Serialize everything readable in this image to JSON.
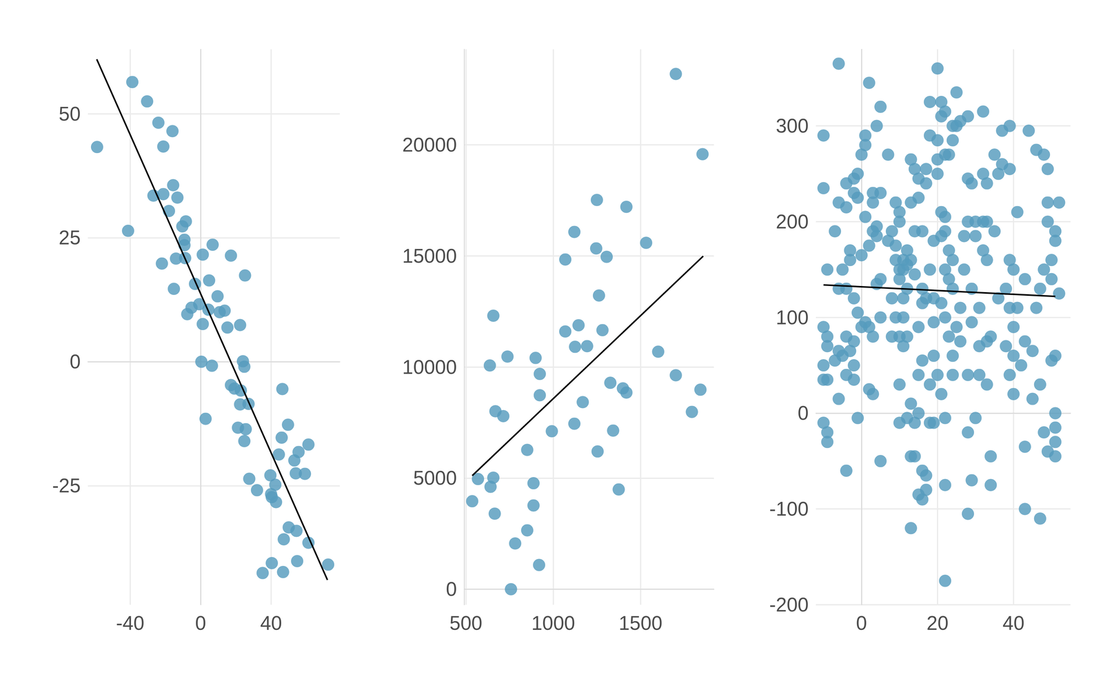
{
  "chart_data": [
    {
      "type": "scatter",
      "grid": true,
      "marker": "circle",
      "xlim": [
        -64,
        79
      ],
      "ylim": [
        -49,
        63
      ],
      "xticks": [
        -40,
        0,
        40
      ],
      "yticks": [
        -25,
        0,
        25,
        50
      ],
      "series": [
        {
          "type": "scatter",
          "color": "#569bbd",
          "x": [
            -58.8,
            -41.2,
            -38.8,
            -30.4,
            -24,
            -16,
            -21.2,
            -15.6,
            -26.8,
            -21.2,
            -13.2,
            -18,
            -8.4,
            -10.4,
            -9.2,
            -9.2,
            -8.8,
            -14,
            -22,
            -15.2,
            -3.2,
            1.2,
            6.8,
            4.8,
            9.6,
            -7.6,
            -5.2,
            -0.8,
            4.4,
            10.8,
            13.6,
            1.2,
            15.2,
            17.2,
            25.2,
            22.4,
            0.4,
            6.4,
            2.8,
            24,
            24.8,
            17.2,
            19.2,
            22.8,
            22.4,
            27.2,
            21.2,
            25.6,
            24.8,
            46.4,
            49.6,
            46,
            61.2,
            55.6,
            44.4,
            53.2,
            59.2,
            54,
            39.6,
            42.4,
            27.6,
            32,
            40,
            40.4,
            42.8,
            50,
            54.4,
            47.2,
            61.2,
            40.4,
            54.8,
            72.4,
            35.2,
            46.8
          ],
          "values": [
            43.3,
            26.4,
            56.4,
            52.5,
            48.2,
            46.5,
            43.4,
            35.6,
            33.5,
            33.8,
            33.1,
            30.4,
            28.3,
            27.3,
            24.6,
            23.5,
            20.9,
            20.8,
            19.8,
            14.7,
            15.7,
            21.6,
            23.6,
            16.4,
            13.2,
            9.6,
            10.9,
            11.6,
            10.5,
            10,
            10.3,
            7.6,
            6.9,
            21.4,
            17.4,
            7.4,
            0,
            -0.8,
            -11.5,
            0.1,
            -1,
            -4.7,
            -5.4,
            -5.8,
            -8.6,
            -8.5,
            -13.3,
            -13.6,
            -16,
            -5.5,
            -12.7,
            -15.3,
            -16.7,
            -18.2,
            -18.7,
            -19.9,
            -22.6,
            -22.5,
            -22.9,
            -24.8,
            -23.6,
            -25.9,
            -26.7,
            -27.3,
            -28.3,
            -33.4,
            -34.1,
            -35.8,
            -36.5,
            -40.6,
            -40.2,
            -40.9,
            -42.6,
            -42.4
          ]
        },
        {
          "type": "line",
          "color": "#000000",
          "x": [
            -59,
            72
          ],
          "values": [
            61,
            -44
          ]
        }
      ]
    },
    {
      "type": "scatter",
      "grid": true,
      "marker": "circle",
      "xlim": [
        490,
        1920
      ],
      "ylim": [
        -700,
        24300
      ],
      "xticks": [
        500,
        1000,
        1500
      ],
      "yticks": [
        0,
        5000,
        10000,
        15000,
        20000
      ],
      "series": [
        {
          "type": "scatter",
          "color": "#569bbd",
          "x": [
            536,
            569,
            641,
            657,
            665,
            657,
            637,
            669,
            714,
            738,
            782,
            758,
            851,
            851,
            887,
            887,
            899,
            923,
            923,
            919,
            992,
            1069,
            1069,
            1121,
            1125,
            1145,
            1121,
            1169,
            1194,
            1250,
            1246,
            1262,
            1306,
            1282,
            1254,
            1327,
            1343,
            1375,
            1399,
            1419,
            1419,
            1532,
            1601,
            1702,
            1702,
            1794,
            1843,
            1855
          ],
          "values": [
            3960,
            4960,
            4610,
            5020,
            3400,
            12310,
            10070,
            8010,
            7790,
            10470,
            2060,
            0,
            2650,
            6270,
            3770,
            4770,
            10410,
            9690,
            8730,
            1090,
            7110,
            14840,
            11600,
            16080,
            10910,
            11880,
            7450,
            8420,
            10940,
            17520,
            15340,
            13220,
            14960,
            11660,
            6200,
            9290,
            7140,
            4490,
            9040,
            8850,
            17210,
            15590,
            10690,
            9630,
            23190,
            7980,
            8980,
            19580
          ]
        },
        {
          "type": "line",
          "color": "#000000",
          "x": [
            536,
            1859
          ],
          "values": [
            5110,
            14990
          ]
        }
      ]
    },
    {
      "type": "scatter",
      "grid": true,
      "marker": "circle",
      "xlim": [
        -12,
        55
      ],
      "ylim": [
        -200,
        380
      ],
      "xticks": [
        0,
        20,
        40
      ],
      "yticks": [
        -200,
        -100,
        0,
        100,
        200,
        300
      ],
      "series": [
        {
          "type": "scatter",
          "color": "#569bbd",
          "x": [
            -10,
            -10,
            -9,
            -10,
            -9,
            -9,
            -10,
            -10,
            -9,
            -10,
            -9,
            -9,
            -6,
            -6,
            -7,
            -4,
            -4,
            -3,
            -2,
            -2,
            -1,
            -1,
            -3,
            -5,
            -4,
            -6,
            -5,
            -7,
            -3,
            -4,
            -2,
            -4,
            -2,
            -6,
            -4,
            -1,
            -2,
            -1,
            -2,
            -6,
            0,
            1,
            1,
            2,
            3,
            3,
            3,
            4,
            4,
            2,
            1,
            0,
            1,
            0,
            2,
            3,
            2,
            3,
            5,
            5,
            4,
            5,
            5,
            4,
            5,
            7,
            8,
            7,
            9,
            9,
            10,
            10,
            10,
            10,
            9,
            8,
            10,
            8,
            9,
            10,
            10,
            11,
            11,
            12,
            12,
            13,
            12,
            13,
            13,
            14,
            15,
            14,
            15,
            16,
            15,
            15,
            16,
            12,
            13,
            14,
            13,
            15,
            14,
            13,
            15,
            16,
            17,
            17,
            18,
            18,
            16,
            17,
            18,
            11,
            11,
            12,
            14,
            11,
            16,
            18,
            17,
            16,
            17,
            18,
            19,
            19,
            19,
            19,
            19,
            20,
            20,
            20,
            21,
            21,
            20,
            22,
            22,
            23,
            24,
            24,
            25,
            25,
            26,
            28,
            21,
            22,
            21,
            22,
            23,
            24,
            22,
            23,
            24,
            21,
            22,
            23,
            24,
            20,
            21,
            22,
            22,
            22,
            24,
            25,
            26,
            26,
            27,
            27,
            28,
            28,
            29,
            30,
            30,
            29,
            29,
            28,
            28,
            28,
            29,
            30,
            31,
            31,
            31,
            32,
            32,
            32,
            32,
            33,
            33,
            33,
            33,
            33,
            34,
            34,
            34,
            35,
            35,
            36,
            36,
            37,
            37,
            38,
            38,
            39,
            39,
            39,
            39,
            40,
            40,
            40,
            41,
            41,
            42,
            43,
            43,
            43,
            43,
            44,
            45,
            45,
            46,
            46,
            47,
            47,
            47,
            48,
            48,
            49,
            49,
            49,
            50,
            50,
            50,
            49,
            48,
            51,
            51,
            51,
            51,
            51,
            51,
            52,
            52,
            51,
            40,
            39
          ],
          "values": [
            290,
            235,
            150,
            90,
            80,
            70,
            50,
            35,
            35,
            -10,
            -20,
            -30,
            365,
            220,
            190,
            240,
            215,
            170,
            245,
            230,
            250,
            225,
            160,
            150,
            130,
            65,
            60,
            55,
            65,
            80,
            75,
            40,
            35,
            15,
            -60,
            -5,
            50,
            105,
            120,
            130,
            270,
            290,
            280,
            345,
            230,
            220,
            190,
            195,
            185,
            175,
            205,
            165,
            95,
            90,
            90,
            80,
            25,
            20,
            -50,
            100,
            135,
            140,
            230,
            300,
            320,
            270,
            190,
            180,
            175,
            220,
            210,
            200,
            150,
            140,
            160,
            80,
            80,
            120,
            100,
            30,
            -10,
            100,
            70,
            130,
            80,
            10,
            -5,
            -45,
            -120,
            -45,
            -85,
            -10,
            0,
            -60,
            40,
            90,
            130,
            170,
            160,
            190,
            220,
            225,
            255,
            265,
            245,
            190,
            240,
            255,
            290,
            325,
            115,
            120,
            150,
            150,
            160,
            155,
            145,
            120,
            55,
            30,
            -65,
            -90,
            -80,
            -10,
            -10,
            60,
            95,
            120,
            180,
            250,
            265,
            285,
            325,
            310,
            360,
            315,
            270,
            270,
            300,
            285,
            300,
            335,
            305,
            310,
            210,
            205,
            185,
            190,
            170,
            160,
            150,
            140,
            130,
            115,
            100,
            80,
            60,
            40,
            20,
            -5,
            -75,
            -175,
            40,
            90,
            75,
            110,
            150,
            185,
            200,
            245,
            240,
            200,
            185,
            130,
            95,
            40,
            -20,
            -105,
            -70,
            -5,
            40,
            70,
            110,
            170,
            200,
            250,
            315,
            240,
            200,
            160,
            75,
            30,
            -75,
            -45,
            80,
            190,
            270,
            250,
            120,
            295,
            260,
            130,
            70,
            300,
            255,
            160,
            110,
            90,
            60,
            150,
            110,
            210,
            50,
            140,
            75,
            -35,
            -100,
            295,
            15,
            65,
            275,
            110,
            -110,
            30,
            130,
            150,
            270,
            255,
            200,
            220,
            160,
            140,
            55,
            -40,
            -20,
            60,
            190,
            180,
            -15,
            -30,
            -45,
            220,
            125,
            0,
            20,
            40
          ]
        },
        {
          "type": "line",
          "color": "#000000",
          "x": [
            -10,
            51
          ],
          "values": [
            134,
            122
          ]
        }
      ]
    }
  ]
}
